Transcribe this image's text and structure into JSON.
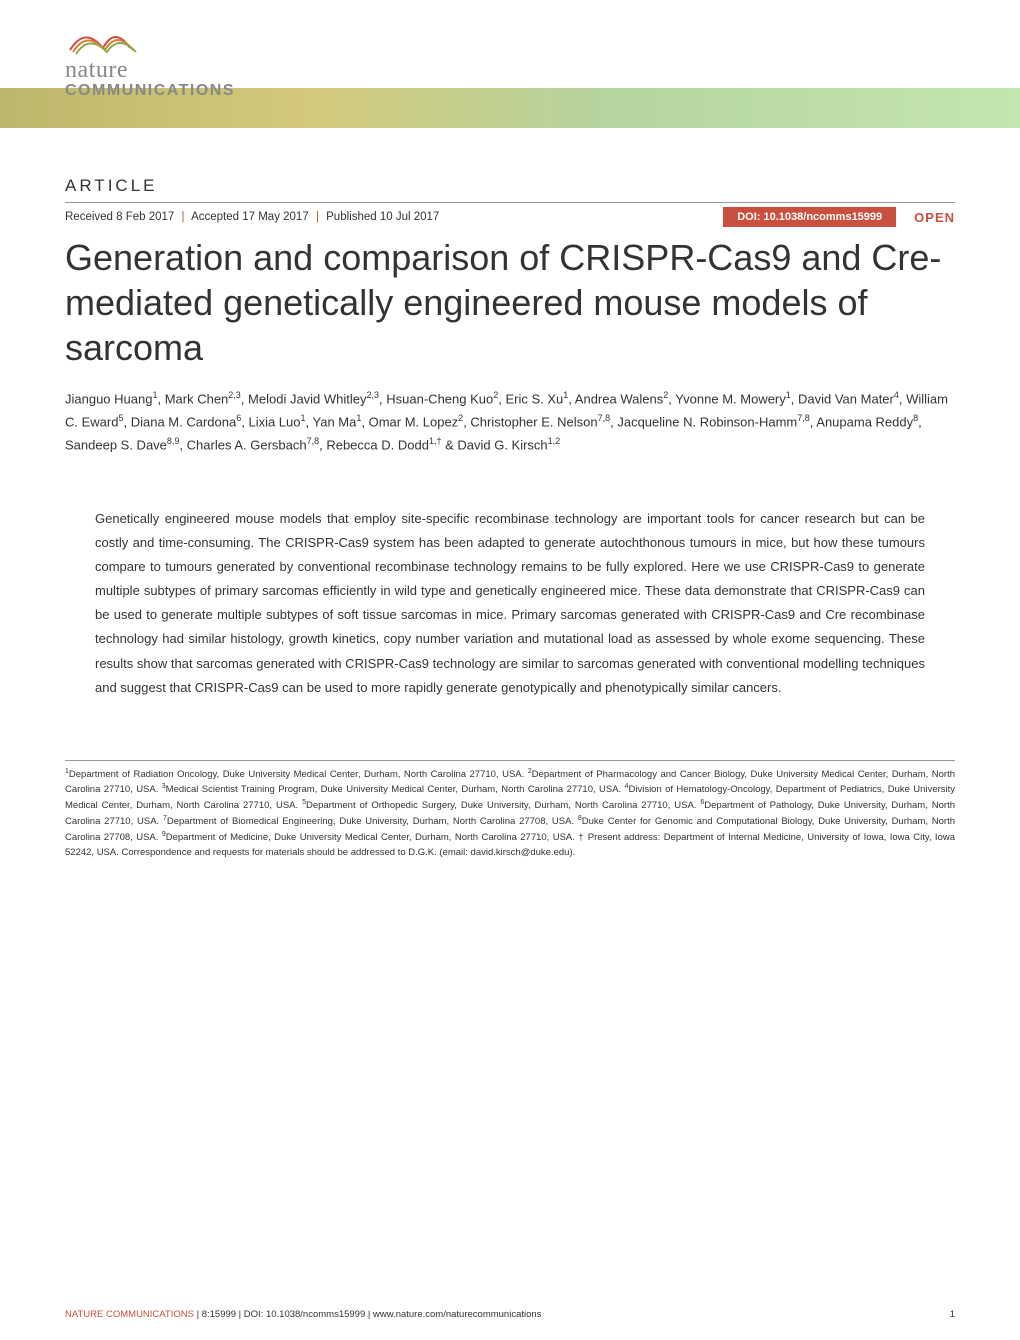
{
  "logo": {
    "word": "nature",
    "sub": "COMMUNICATIONS",
    "swoosh_colors": [
      "#c94f3e",
      "#e07b35",
      "#8fa84c"
    ]
  },
  "header_gradient": {
    "stops": [
      "#bdb76b",
      "#d4c97a",
      "#b5d4a0",
      "#c5e5b0"
    ]
  },
  "article_label": "ARTICLE",
  "meta": {
    "received": "Received 8 Feb 2017",
    "accepted": "Accepted 17 May 2017",
    "published": "Published 10 Jul 2017",
    "doi": "DOI: 10.1038/ncomms15999",
    "open": "OPEN",
    "badge_bg": "#c94f3e",
    "badge_fg": "#ffffff",
    "open_color": "#c94f3e"
  },
  "title": "Generation and comparison of CRISPR-Cas9 and Cre-mediated genetically engineered mouse models of sarcoma",
  "authors_html": "Jianguo Huang<sup>1</sup>, Mark Chen<sup>2,3</sup>, Melodi Javid Whitley<sup>2,3</sup>, Hsuan-Cheng Kuo<sup>2</sup>, Eric S. Xu<sup>1</sup>, Andrea Walens<sup>2</sup>, Yvonne M. Mowery<sup>1</sup>, David Van Mater<sup>4</sup>, William C. Eward<sup>5</sup>, Diana M. Cardona<sup>6</sup>, Lixia Luo<sup>1</sup>, Yan Ma<sup>1</sup>, Omar M. Lopez<sup>2</sup>, Christopher E. Nelson<sup>7,8</sup>, Jacqueline N. Robinson-Hamm<sup>7,8</sup>, Anupama Reddy<sup>8</sup>, Sandeep S. Dave<sup>8,9</sup>, Charles A. Gersbach<sup>7,8</sup>, Rebecca D. Dodd<sup>1,†</sup> & David G. Kirsch<sup>1,2</sup>",
  "abstract": "Genetically engineered mouse models that employ site-specific recombinase technology are important tools for cancer research but can be costly and time-consuming. The CRISPR-Cas9 system has been adapted to generate autochthonous tumours in mice, but how these tumours compare to tumours generated by conventional recombinase technology remains to be fully explored. Here we use CRISPR-Cas9 to generate multiple subtypes of primary sarcomas efficiently in wild type and genetically engineered mice. These data demonstrate that CRISPR-Cas9 can be used to generate multiple subtypes of soft tissue sarcomas in mice. Primary sarcomas generated with CRISPR-Cas9 and Cre recombinase technology had similar histology, growth kinetics, copy number variation and mutational load as assessed by whole exome sequencing. These results show that sarcomas generated with CRISPR-Cas9 technology are similar to sarcomas generated with conventional modelling techniques and suggest that CRISPR-Cas9 can be used to more rapidly generate genotypically and phenotypically similar cancers.",
  "affiliations_html": "<sup>1</sup>Department of Radiation Oncology, Duke University Medical Center, Durham, North Carolina 27710, USA. <sup>2</sup>Department of Pharmacology and Cancer Biology, Duke University Medical Center, Durham, North Carolina 27710, USA. <sup>3</sup>Medical Scientist Training Program, Duke University Medical Center, Durham, North Carolina 27710, USA. <sup>4</sup>Division of Hematology-Oncology, Department of Pediatrics, Duke University Medical Center, Durham, North Carolina 27710, USA. <sup>5</sup>Department of Orthopedic Surgery, Duke University, Durham, North Carolina 27710, USA. <sup>6</sup>Department of Pathology, Duke University, Durham, North Carolina 27710, USA. <sup>7</sup>Department of Biomedical Engineering, Duke University, Durham, North Carolina 27708, USA. <sup>8</sup>Duke Center for Genomic and Computational Biology, Duke University, Durham, North Carolina 27708, USA. <sup>9</sup>Department of Medicine, Duke University Medical Center, Durham, North Carolina 27710, USA. † Present address: Department of Internal Medicine, University of Iowa, Iowa City, Iowa 52242, USA. Correspondence and requests for materials should be addressed to D.G.K. (email: david.kirsch@duke.edu).",
  "footer": {
    "journal": "NATURE COMMUNICATIONS",
    "citation": "| 8:15999 | DOI: 10.1038/ncomms15999 | www.nature.com/naturecommunications",
    "page": "1",
    "journal_color": "#c94f3e"
  },
  "typography": {
    "title_fontsize": 36,
    "title_weight": 300,
    "body_fontsize": 13,
    "affiliation_fontsize": 9.5,
    "meta_fontsize": 11.5,
    "label_fontsize": 17,
    "label_letterspacing": 3
  },
  "colors": {
    "accent": "#c94f3e",
    "text": "#333333",
    "rule": "#999999",
    "logo_grey": "#888888",
    "background": "#ffffff"
  }
}
